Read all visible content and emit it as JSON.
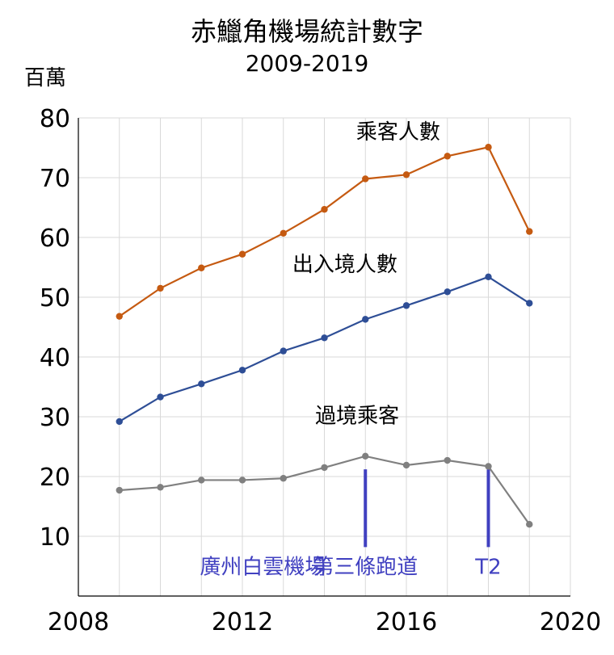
{
  "chart_data": {
    "type": "line",
    "title": "赤鱲角機場統計數字",
    "subtitle": "2009-2019",
    "ylabel": "百萬",
    "xlim": [
      2008,
      2020
    ],
    "ylim": [
      0,
      80
    ],
    "x_ticks": [
      2008,
      2012,
      2016,
      2020
    ],
    "y_ticks": [
      10,
      20,
      30,
      40,
      50,
      60,
      70,
      80
    ],
    "grid": true,
    "x": [
      2009,
      2010,
      2011,
      2012,
      2013,
      2014,
      2015,
      2016,
      2017,
      2018,
      2019
    ],
    "series": [
      {
        "name": "乘客人數",
        "color": "#c55a11",
        "values": [
          46.8,
          51.5,
          54.9,
          57.2,
          60.7,
          64.7,
          69.8,
          70.5,
          73.6,
          75.1,
          61.0
        ]
      },
      {
        "name": "出入境人數",
        "color": "#2e4e96",
        "values": [
          29.2,
          33.3,
          35.5,
          37.8,
          41.0,
          43.2,
          46.3,
          48.6,
          50.9,
          53.4,
          49.0
        ]
      },
      {
        "name": "過境乘客",
        "color": "#808080",
        "values": [
          17.7,
          18.2,
          19.4,
          19.4,
          19.7,
          21.5,
          23.4,
          21.9,
          22.7,
          21.7,
          12.0
        ]
      }
    ],
    "annotations": [
      {
        "text": "廣州白雲機場",
        "x": 2012.5,
        "marker": false
      },
      {
        "text": "第三條跑道",
        "x": 2015,
        "marker": true
      },
      {
        "text": "T2",
        "x": 2018,
        "marker": true
      }
    ],
    "annotation_color": "#4040c0"
  }
}
